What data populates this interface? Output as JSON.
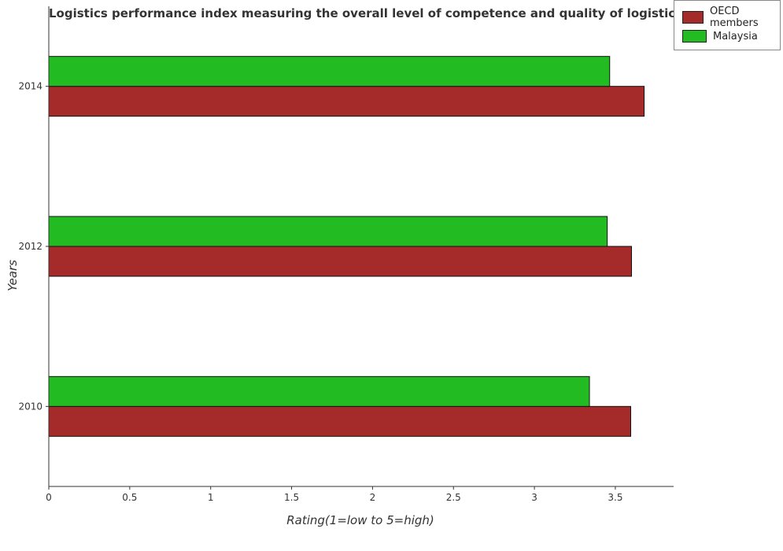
{
  "chart_data": {
    "type": "bar",
    "orientation": "horizontal",
    "title": "Logistics performance index measuring the overall level of competence and quality of logistics services",
    "xlabel": "Rating(1=low to 5=high)",
    "ylabel": "Years",
    "categories": [
      "2010",
      "2012",
      "2014"
    ],
    "xlim": [
      0,
      3.86
    ],
    "xticks": [
      "0",
      "0.5",
      "1",
      "1.5",
      "2",
      "2.5",
      "3",
      "3.5"
    ],
    "legend_position": "top-right",
    "grid": false,
    "series": [
      {
        "name": "OECD members",
        "color": "#a52a2a",
        "values": [
          3.595,
          3.6,
          3.678
        ]
      },
      {
        "name": "Malaysia",
        "color": "#22bb22",
        "values": [
          3.34,
          3.45,
          3.465
        ]
      }
    ]
  }
}
